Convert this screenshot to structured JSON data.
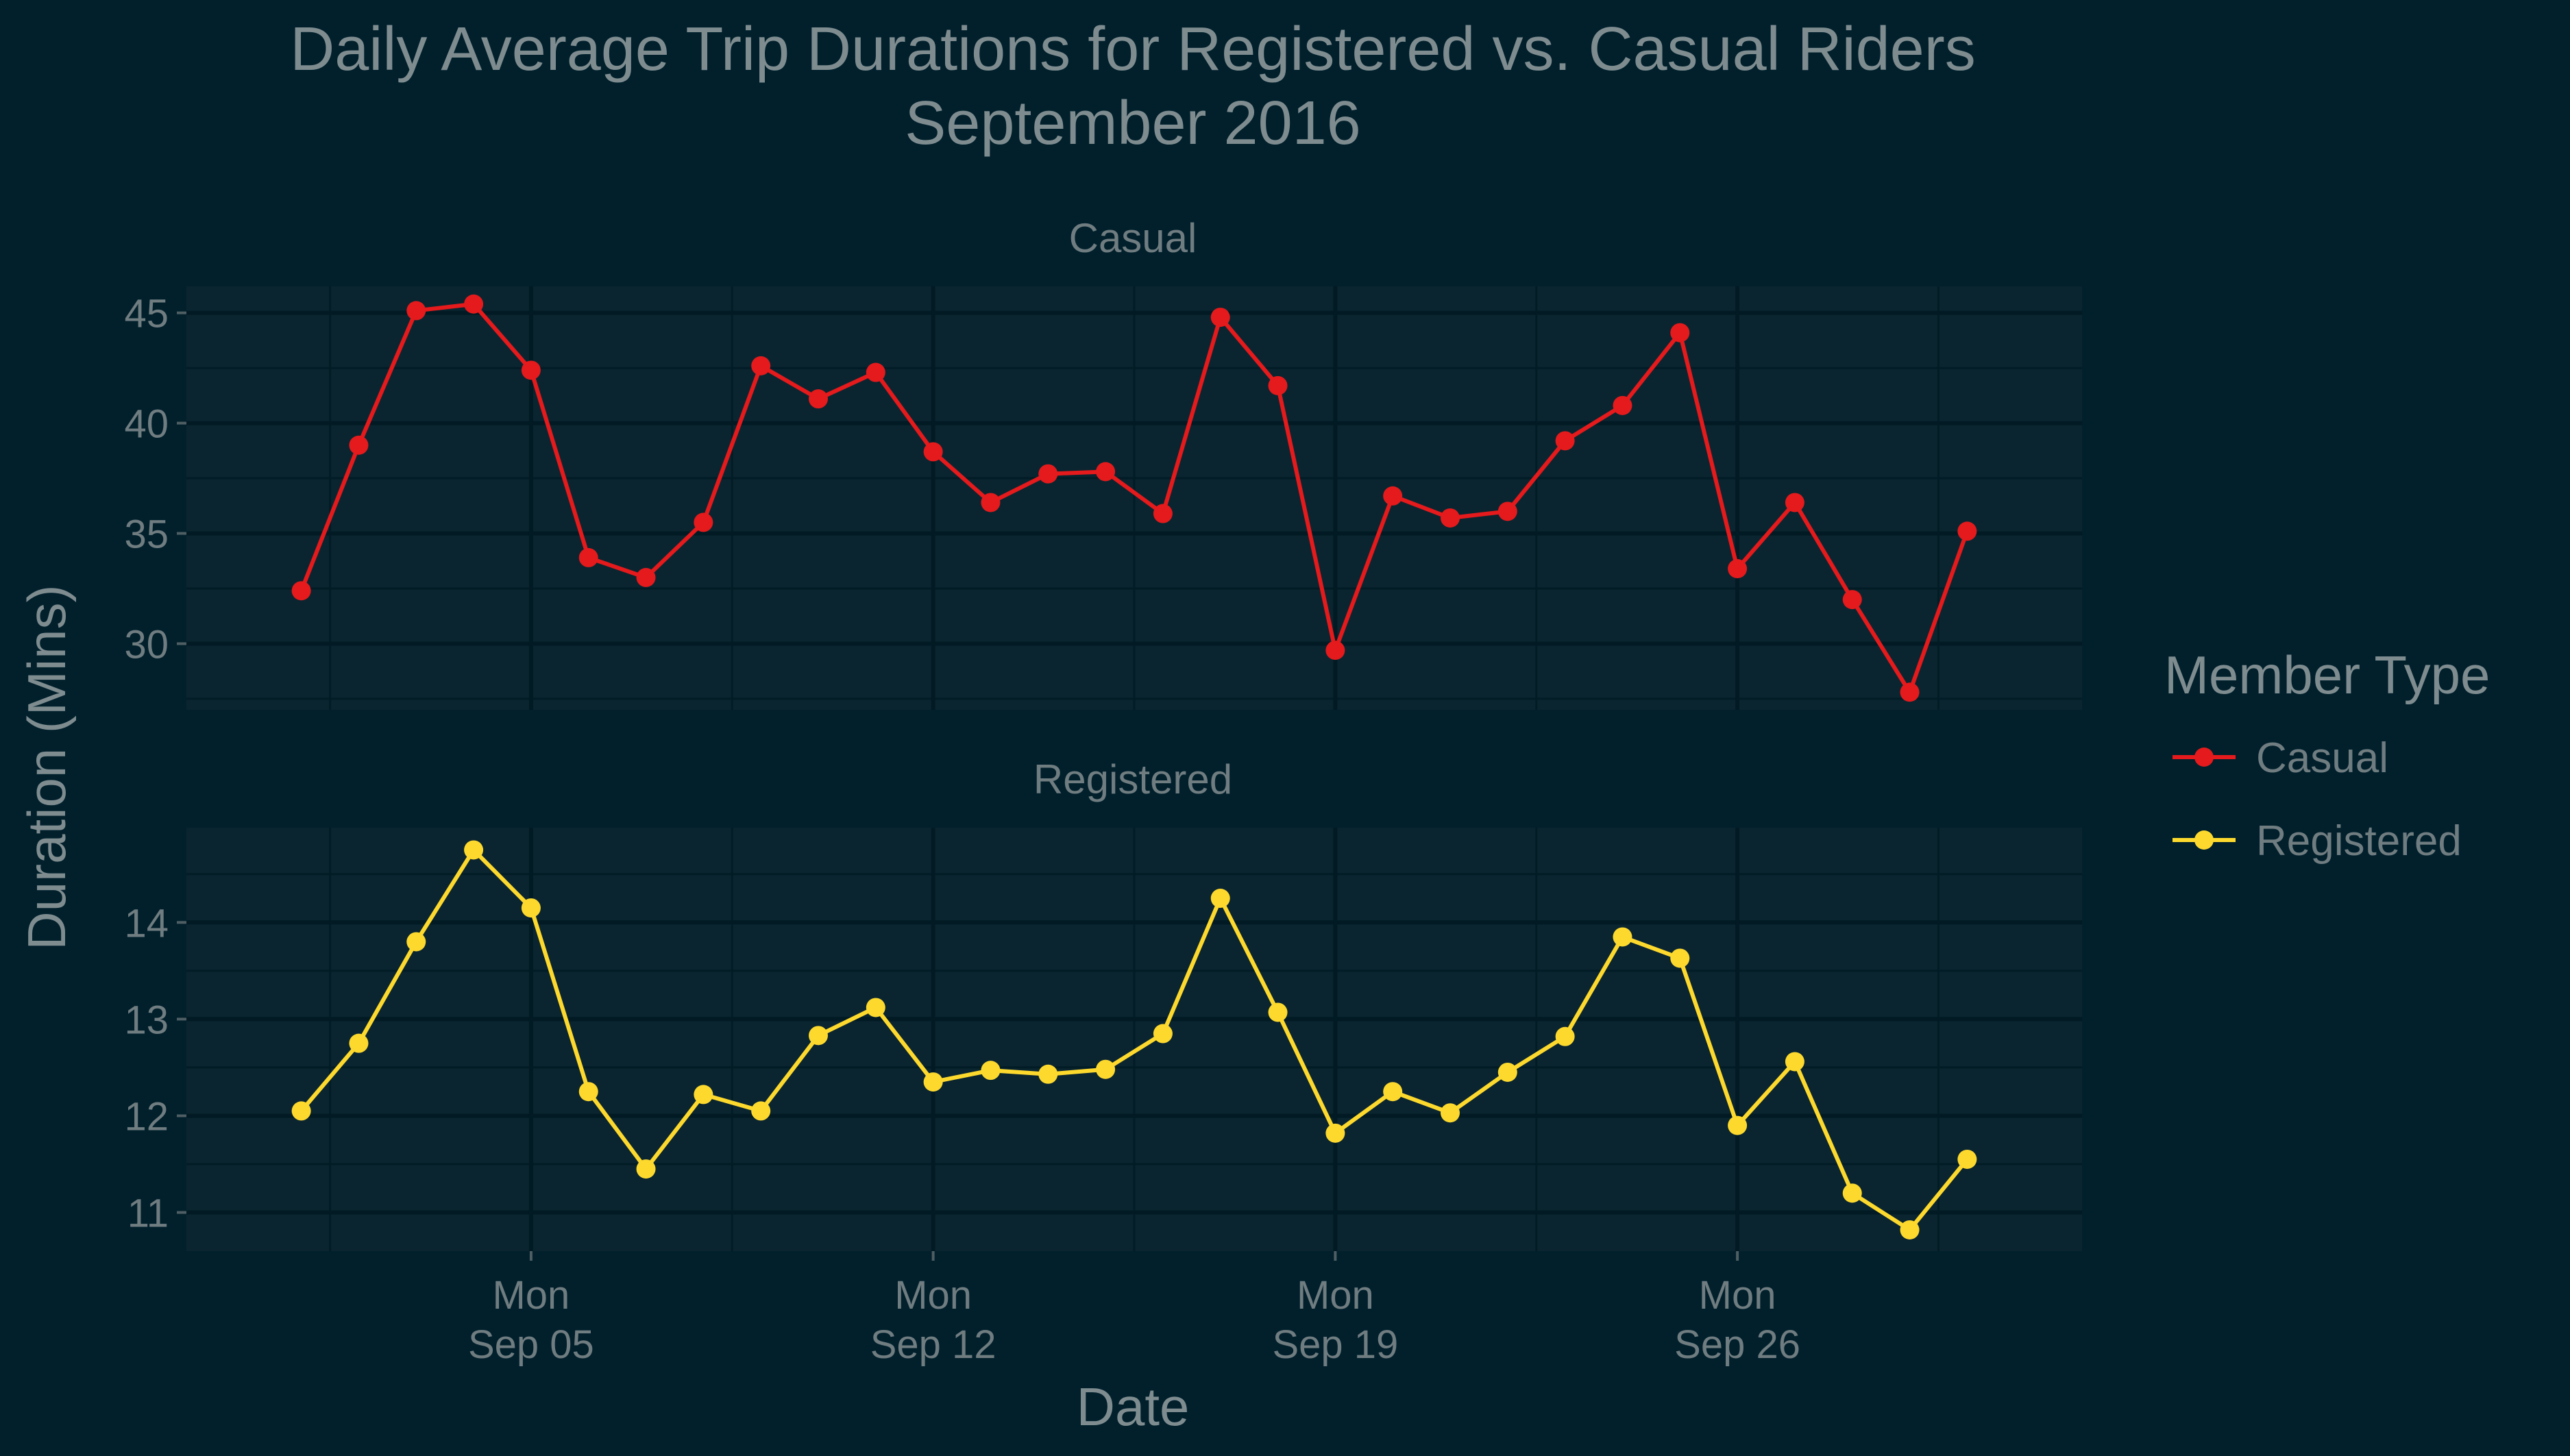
{
  "chart_data": {
    "type": "line",
    "title": "Daily Average Trip Durations for Registered vs. Casual Riders",
    "subtitle": "September 2016",
    "xlabel": "Date",
    "ylabel": "Duration (Mins)",
    "x_range": [
      "2016-08-30",
      "2016-10-02"
    ],
    "x_ticks": [
      {
        "date": "2016-09-05",
        "weekday": "Mon",
        "label": "Sep 05"
      },
      {
        "date": "2016-09-12",
        "weekday": "Mon",
        "label": "Sep 12"
      },
      {
        "date": "2016-09-19",
        "weekday": "Mon",
        "label": "Sep 19"
      },
      {
        "date": "2016-09-26",
        "weekday": "Mon",
        "label": "Sep 26"
      }
    ],
    "dates": [
      "2016-09-01",
      "2016-09-02",
      "2016-09-03",
      "2016-09-04",
      "2016-09-05",
      "2016-09-06",
      "2016-09-07",
      "2016-09-08",
      "2016-09-09",
      "2016-09-10",
      "2016-09-11",
      "2016-09-12",
      "2016-09-13",
      "2016-09-14",
      "2016-09-15",
      "2016-09-16",
      "2016-09-17",
      "2016-09-18",
      "2016-09-19",
      "2016-09-20",
      "2016-09-21",
      "2016-09-22",
      "2016-09-23",
      "2016-09-24",
      "2016-09-25",
      "2016-09-26",
      "2016-09-27",
      "2016-09-28",
      "2016-09-29",
      "2016-09-30"
    ],
    "grid": true,
    "legend": {
      "title": "Member Type",
      "placement": "right"
    },
    "panels": [
      {
        "strip_label": "Casual",
        "series_name": "Casual",
        "color": "#e41a1c",
        "ylim": [
          27,
          46.2
        ],
        "y_ticks": [
          30,
          35,
          40,
          45
        ],
        "y_minor": [
          27.5,
          32.5,
          37.5,
          42.5
        ],
        "values": [
          32.4,
          39.0,
          45.1,
          45.4,
          42.4,
          33.9,
          33.0,
          35.5,
          42.6,
          41.1,
          42.3,
          38.7,
          36.4,
          37.7,
          37.8,
          35.9,
          44.8,
          41.7,
          29.7,
          36.7,
          35.7,
          36.0,
          39.2,
          40.8,
          44.1,
          33.4,
          36.4,
          32.0,
          27.8,
          35.1
        ]
      },
      {
        "strip_label": "Registered",
        "series_name": "Registered",
        "color": "#fdd92e",
        "ylim": [
          10.6,
          14.98
        ],
        "y_ticks": [
          11,
          12,
          13,
          14
        ],
        "y_minor": [
          11.5,
          12.5,
          13.5,
          14.5
        ],
        "values": [
          12.05,
          12.75,
          13.8,
          14.75,
          14.15,
          12.25,
          11.45,
          12.22,
          12.05,
          12.83,
          13.12,
          12.35,
          12.47,
          12.43,
          12.48,
          12.85,
          14.25,
          13.07,
          11.82,
          12.25,
          12.03,
          12.45,
          12.82,
          13.85,
          13.63,
          11.9,
          12.56,
          11.2,
          10.82,
          11.55
        ]
      }
    ]
  }
}
